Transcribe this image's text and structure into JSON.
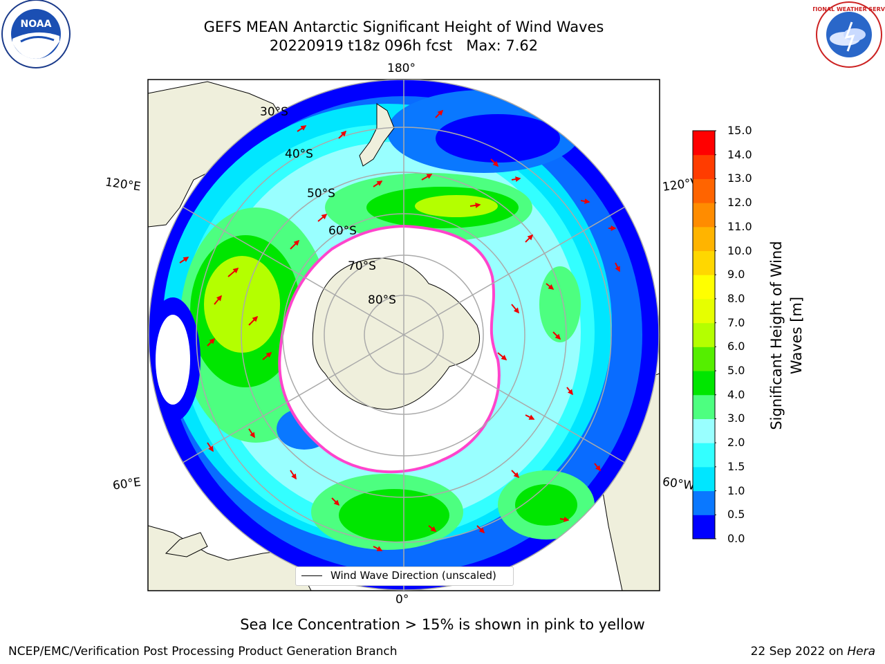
{
  "title": {
    "line1": "GEFS MEAN Antarctic Significant Height of Wind Waves",
    "line2": "20220919 t18z 096h fcst   Max: 7.62"
  },
  "map": {
    "projection": "south-polar-stereographic",
    "lon_labels": [
      "180°",
      "120°E",
      "120°W",
      "60°E",
      "60°W",
      "0°"
    ],
    "lat_labels": [
      "30°S",
      "40°S",
      "50°S",
      "60°S",
      "70°S",
      "80°S"
    ]
  },
  "colorbar": {
    "label": "Significant Height of Wind Waves [m]",
    "ticks": [
      "0.0",
      "0.5",
      "1.0",
      "1.5",
      "2.0",
      "3.0",
      "4.0",
      "5.0",
      "6.0",
      "7.0",
      "8.0",
      "9.0",
      "10.0",
      "11.0",
      "12.0",
      "13.0",
      "14.0",
      "15.0"
    ],
    "colors": [
      "#0000ff",
      "#0a78ff",
      "#00e6ff",
      "#33ffff",
      "#99ffff",
      "#4dff80",
      "#00e600",
      "#55ee00",
      "#b4ff00",
      "#e6ff00",
      "#ffff00",
      "#ffd700",
      "#ffb400",
      "#ff8c00",
      "#ff6400",
      "#ff3c00",
      "#ff0000"
    ]
  },
  "legend": {
    "label": "Wind Wave Direction (unscaled)"
  },
  "note": "Sea Ice Concentration > 15% is shown in pink to yellow",
  "footer": {
    "left": "NCEP/EMC/Verification Post Processing Product Generation Branch",
    "right_prefix": "22 Sep 2022 on ",
    "right_host": "Hera"
  },
  "logos": {
    "left": "NOAA",
    "right": "NATIONAL WEATHER SERVICE"
  },
  "colors": {
    "land": "#efefdc",
    "ice_edge": "#ff44cc",
    "arrow": "#ee0000"
  }
}
